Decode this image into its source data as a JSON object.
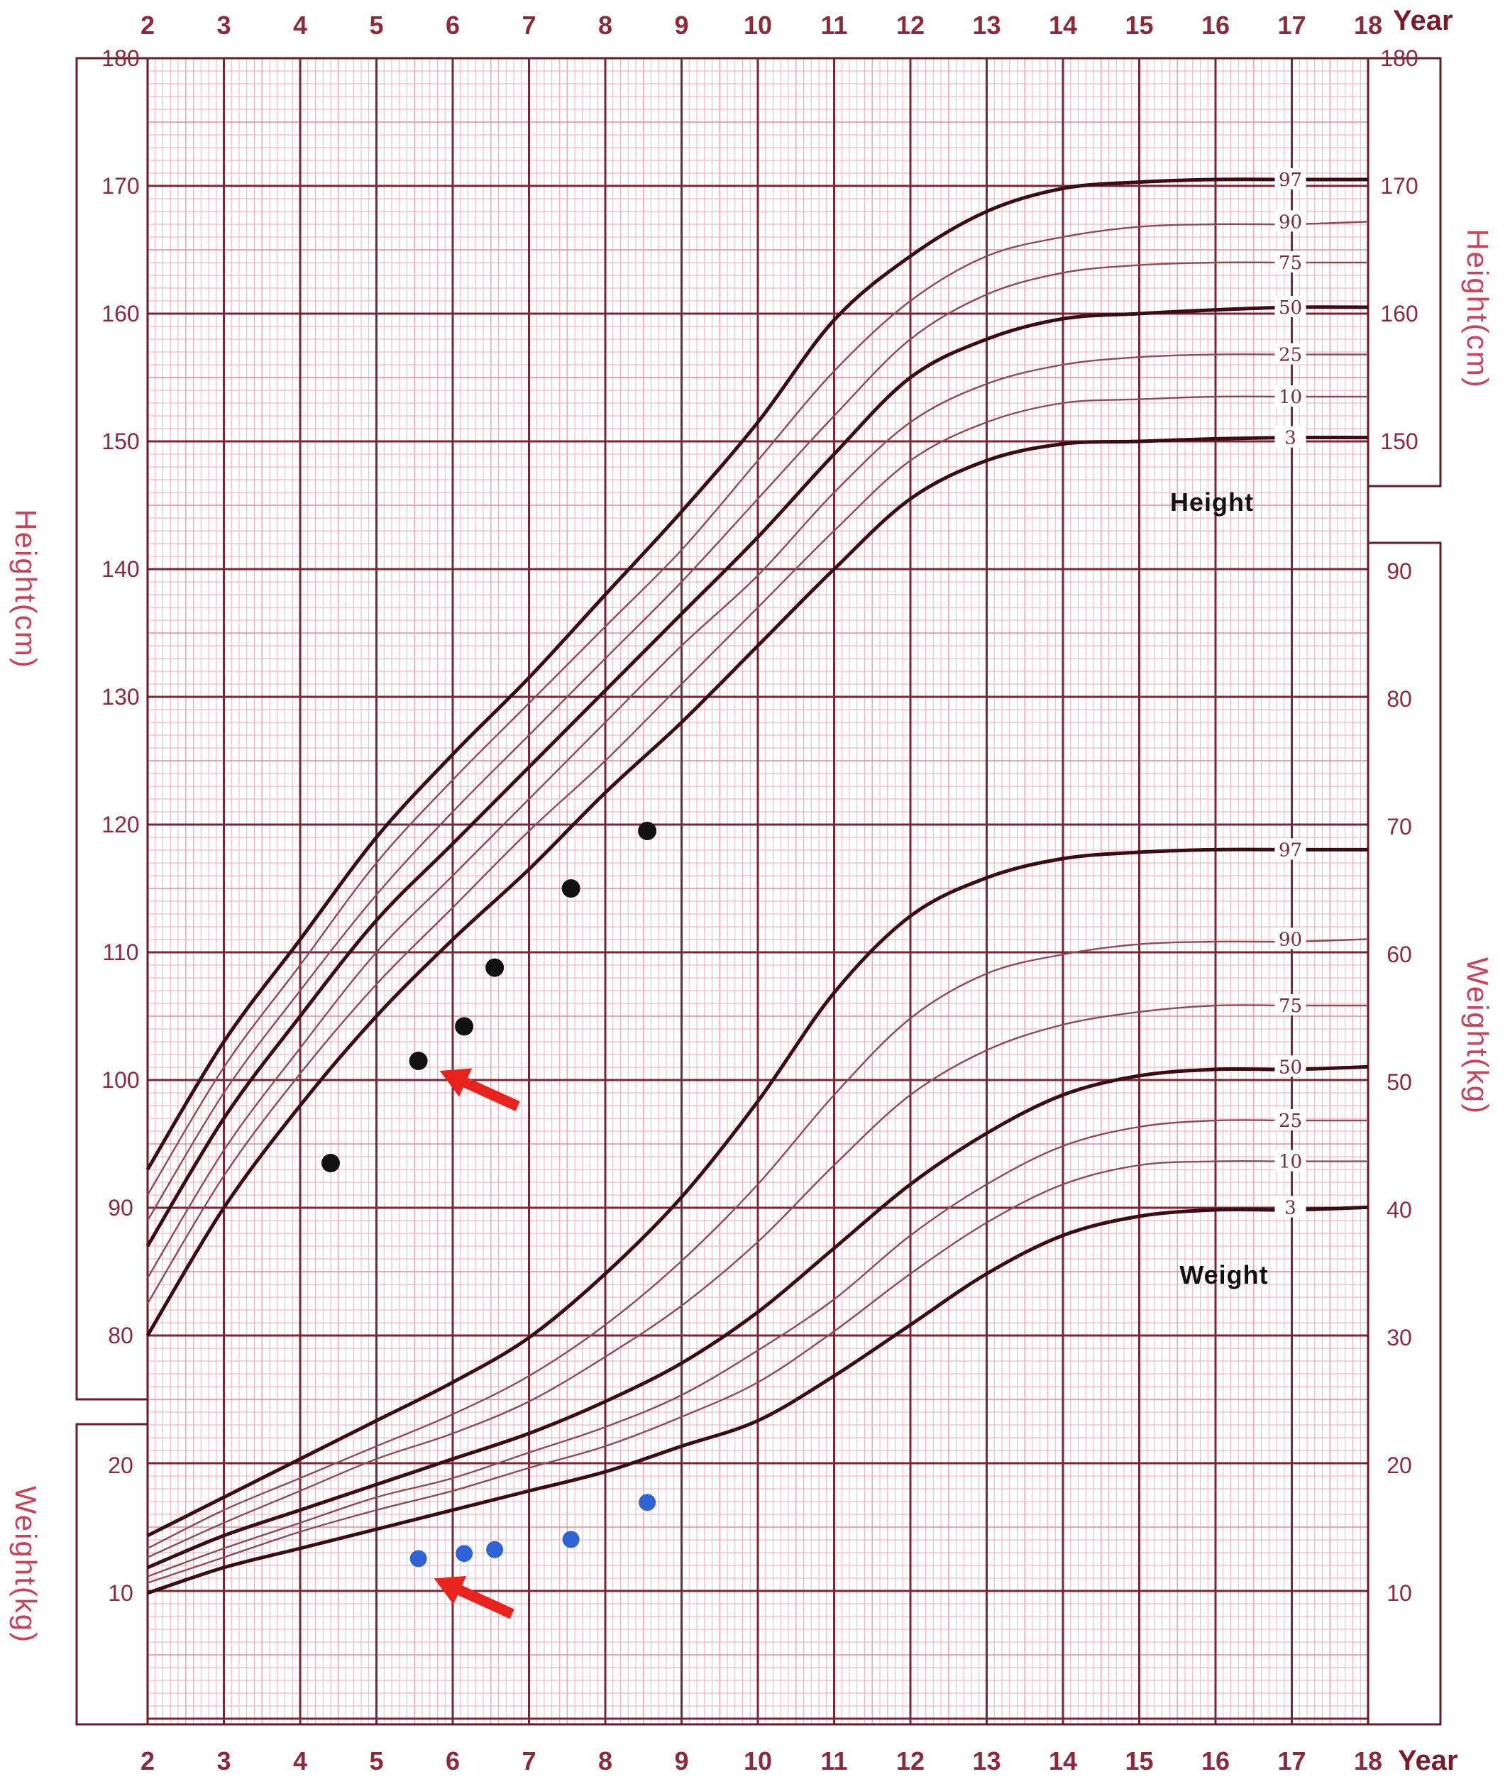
{
  "chart_data": {
    "type": "line",
    "x_unit_label": "Year",
    "x_ticks": [
      2,
      3,
      4,
      5,
      6,
      7,
      8,
      9,
      10,
      11,
      12,
      13,
      14,
      15,
      16,
      17,
      18
    ],
    "height": {
      "section_label": "Height",
      "axis_label": "Height(cm)",
      "ylim": [
        80,
        180
      ],
      "ticks": [
        80,
        90,
        100,
        110,
        120,
        130,
        140,
        150,
        160,
        170,
        180
      ],
      "percentiles": [
        {
          "name": "97",
          "x": [
            2,
            3,
            4,
            5,
            6,
            7,
            8,
            9,
            10,
            11,
            12,
            13,
            14,
            15,
            16,
            17,
            18
          ],
          "y": [
            93,
            103,
            111,
            119,
            125.5,
            131.5,
            138,
            144.5,
            151.5,
            159.5,
            164.5,
            168,
            169.8,
            170.3,
            170.5,
            170.5,
            170.5
          ]
        },
        {
          "name": "90",
          "x": [
            2,
            3,
            4,
            5,
            6,
            7,
            8,
            9,
            10,
            11,
            12,
            13,
            14,
            15,
            16,
            17,
            18
          ],
          "y": [
            91,
            101,
            109,
            117,
            123.5,
            129.5,
            135.5,
            141.5,
            148.5,
            155.5,
            161,
            164.5,
            166,
            166.8,
            167,
            167,
            167.2
          ]
        },
        {
          "name": "75",
          "x": [
            2,
            3,
            4,
            5,
            6,
            7,
            8,
            9,
            10,
            11,
            12,
            13,
            14,
            15,
            16,
            17,
            18
          ],
          "y": [
            89,
            99,
            107,
            114.5,
            121,
            127,
            133,
            139,
            145.5,
            152,
            158,
            161.5,
            163.2,
            163.8,
            164,
            164,
            164
          ]
        },
        {
          "name": "50",
          "x": [
            2,
            3,
            4,
            5,
            6,
            7,
            8,
            9,
            10,
            11,
            12,
            13,
            14,
            15,
            16,
            17,
            18
          ],
          "y": [
            87,
            97,
            105,
            112.5,
            118.5,
            124.5,
            130.5,
            136.5,
            142.5,
            149,
            155,
            158,
            159.6,
            160,
            160.3,
            160.5,
            160.5
          ]
        },
        {
          "name": "25",
          "x": [
            2,
            3,
            4,
            5,
            6,
            7,
            8,
            9,
            10,
            11,
            12,
            13,
            14,
            15,
            16,
            17,
            18
          ],
          "y": [
            84.5,
            94.5,
            102.5,
            110,
            116,
            122,
            128,
            134,
            139.5,
            146,
            151.5,
            154.5,
            156,
            156.6,
            156.8,
            156.8,
            156.8
          ]
        },
        {
          "name": "10",
          "x": [
            2,
            3,
            4,
            5,
            6,
            7,
            8,
            9,
            10,
            11,
            12,
            13,
            14,
            15,
            16,
            17,
            18
          ],
          "y": [
            82.5,
            92.5,
            100.5,
            107.5,
            113.5,
            119.5,
            125,
            131,
            137,
            143,
            148.5,
            151.5,
            153,
            153.3,
            153.5,
            153.5,
            153.5
          ]
        },
        {
          "name": "3",
          "x": [
            2,
            3,
            4,
            5,
            6,
            7,
            8,
            9,
            10,
            11,
            12,
            13,
            14,
            15,
            16,
            17,
            18
          ],
          "y": [
            80,
            90,
            98,
            105,
            111,
            116.5,
            122.5,
            128,
            134,
            140,
            145.5,
            148.5,
            149.8,
            150,
            150.2,
            150.3,
            150.3
          ]
        }
      ],
      "patient_points": [
        {
          "x": 4.4,
          "y": 93.5
        },
        {
          "x": 5.55,
          "y": 101.5
        },
        {
          "x": 6.15,
          "y": 104.2
        },
        {
          "x": 6.55,
          "y": 108.8
        },
        {
          "x": 7.55,
          "y": 115
        },
        {
          "x": 8.55,
          "y": 119.5
        }
      ]
    },
    "weight": {
      "section_label": "Weight",
      "axis_label": "Weight(kg)",
      "ylim": [
        10,
        90
      ],
      "ticks": [
        10,
        20,
        30,
        40,
        50,
        60,
        70,
        80,
        90
      ],
      "percentiles": [
        {
          "name": "97",
          "x": [
            2,
            3,
            4,
            5,
            6,
            7,
            8,
            9,
            10,
            11,
            12,
            13,
            14,
            15,
            16,
            17,
            18
          ],
          "y": [
            14.5,
            17.5,
            20.5,
            23.5,
            26.5,
            30,
            35,
            41,
            48.5,
            57,
            63,
            66,
            67.5,
            68,
            68.2,
            68.2,
            68.2
          ]
        },
        {
          "name": "90",
          "x": [
            2,
            3,
            4,
            5,
            6,
            7,
            8,
            9,
            10,
            11,
            12,
            13,
            14,
            15,
            16,
            17,
            18
          ],
          "y": [
            13.5,
            16.5,
            19,
            21.5,
            24,
            27,
            31,
            36,
            42,
            49,
            55,
            58.5,
            60,
            60.8,
            61,
            61,
            61.2
          ]
        },
        {
          "name": "75",
          "x": [
            2,
            3,
            4,
            5,
            6,
            7,
            8,
            9,
            10,
            11,
            12,
            13,
            14,
            15,
            16,
            17,
            18
          ],
          "y": [
            12.8,
            15.5,
            18,
            20.5,
            22.5,
            25,
            28.5,
            32.5,
            37.5,
            43.5,
            49,
            52.5,
            54.5,
            55.5,
            56,
            56,
            56
          ]
        },
        {
          "name": "50",
          "x": [
            2,
            3,
            4,
            5,
            6,
            7,
            8,
            9,
            10,
            11,
            12,
            13,
            14,
            15,
            16,
            17,
            18
          ],
          "y": [
            12,
            14.5,
            16.5,
            18.5,
            20.5,
            22.5,
            25,
            28,
            32,
            37,
            42,
            46,
            49,
            50.5,
            51,
            51,
            51.2
          ]
        },
        {
          "name": "25",
          "x": [
            2,
            3,
            4,
            5,
            6,
            7,
            8,
            9,
            10,
            11,
            12,
            13,
            14,
            15,
            16,
            17,
            18
          ],
          "y": [
            11.3,
            13.5,
            15.5,
            17.5,
            19,
            21,
            23,
            25.5,
            29,
            33,
            38,
            42,
            45,
            46.5,
            47,
            47,
            47
          ]
        },
        {
          "name": "10",
          "x": [
            2,
            3,
            4,
            5,
            6,
            7,
            8,
            9,
            10,
            11,
            12,
            13,
            14,
            15,
            16,
            17,
            18
          ],
          "y": [
            10.8,
            12.8,
            14.8,
            16.5,
            18,
            19.8,
            21.5,
            23.8,
            26.5,
            30.5,
            35,
            39,
            42,
            43.5,
            43.8,
            43.8,
            43.8
          ]
        },
        {
          "name": "3",
          "x": [
            2,
            3,
            4,
            5,
            6,
            7,
            8,
            9,
            10,
            11,
            12,
            13,
            14,
            15,
            16,
            17,
            18
          ],
          "y": [
            10,
            12,
            13.5,
            15,
            16.5,
            18,
            19.5,
            21.5,
            23.5,
            27,
            31,
            35,
            38,
            39.5,
            40,
            40,
            40.2
          ]
        }
      ],
      "patient_points": [
        {
          "x": 5.55,
          "y": 12.7
        },
        {
          "x": 6.15,
          "y": 13.1
        },
        {
          "x": 6.55,
          "y": 13.4
        },
        {
          "x": 7.55,
          "y": 14.2
        },
        {
          "x": 8.55,
          "y": 17.1
        }
      ]
    },
    "grid": true,
    "colors": {
      "frame": "#6b1a2a",
      "major_grid": "#7b2537",
      "minor_grid": "#f2a7b6",
      "percentile_bold": "#3a0d14",
      "percentile_thin": "#8e4b57",
      "height_points": "#111111",
      "weight_points": "#2f63d6",
      "arrows": "#e8231e",
      "tick_label": "#8c2a3c",
      "axis_title": "#c8445c"
    }
  }
}
